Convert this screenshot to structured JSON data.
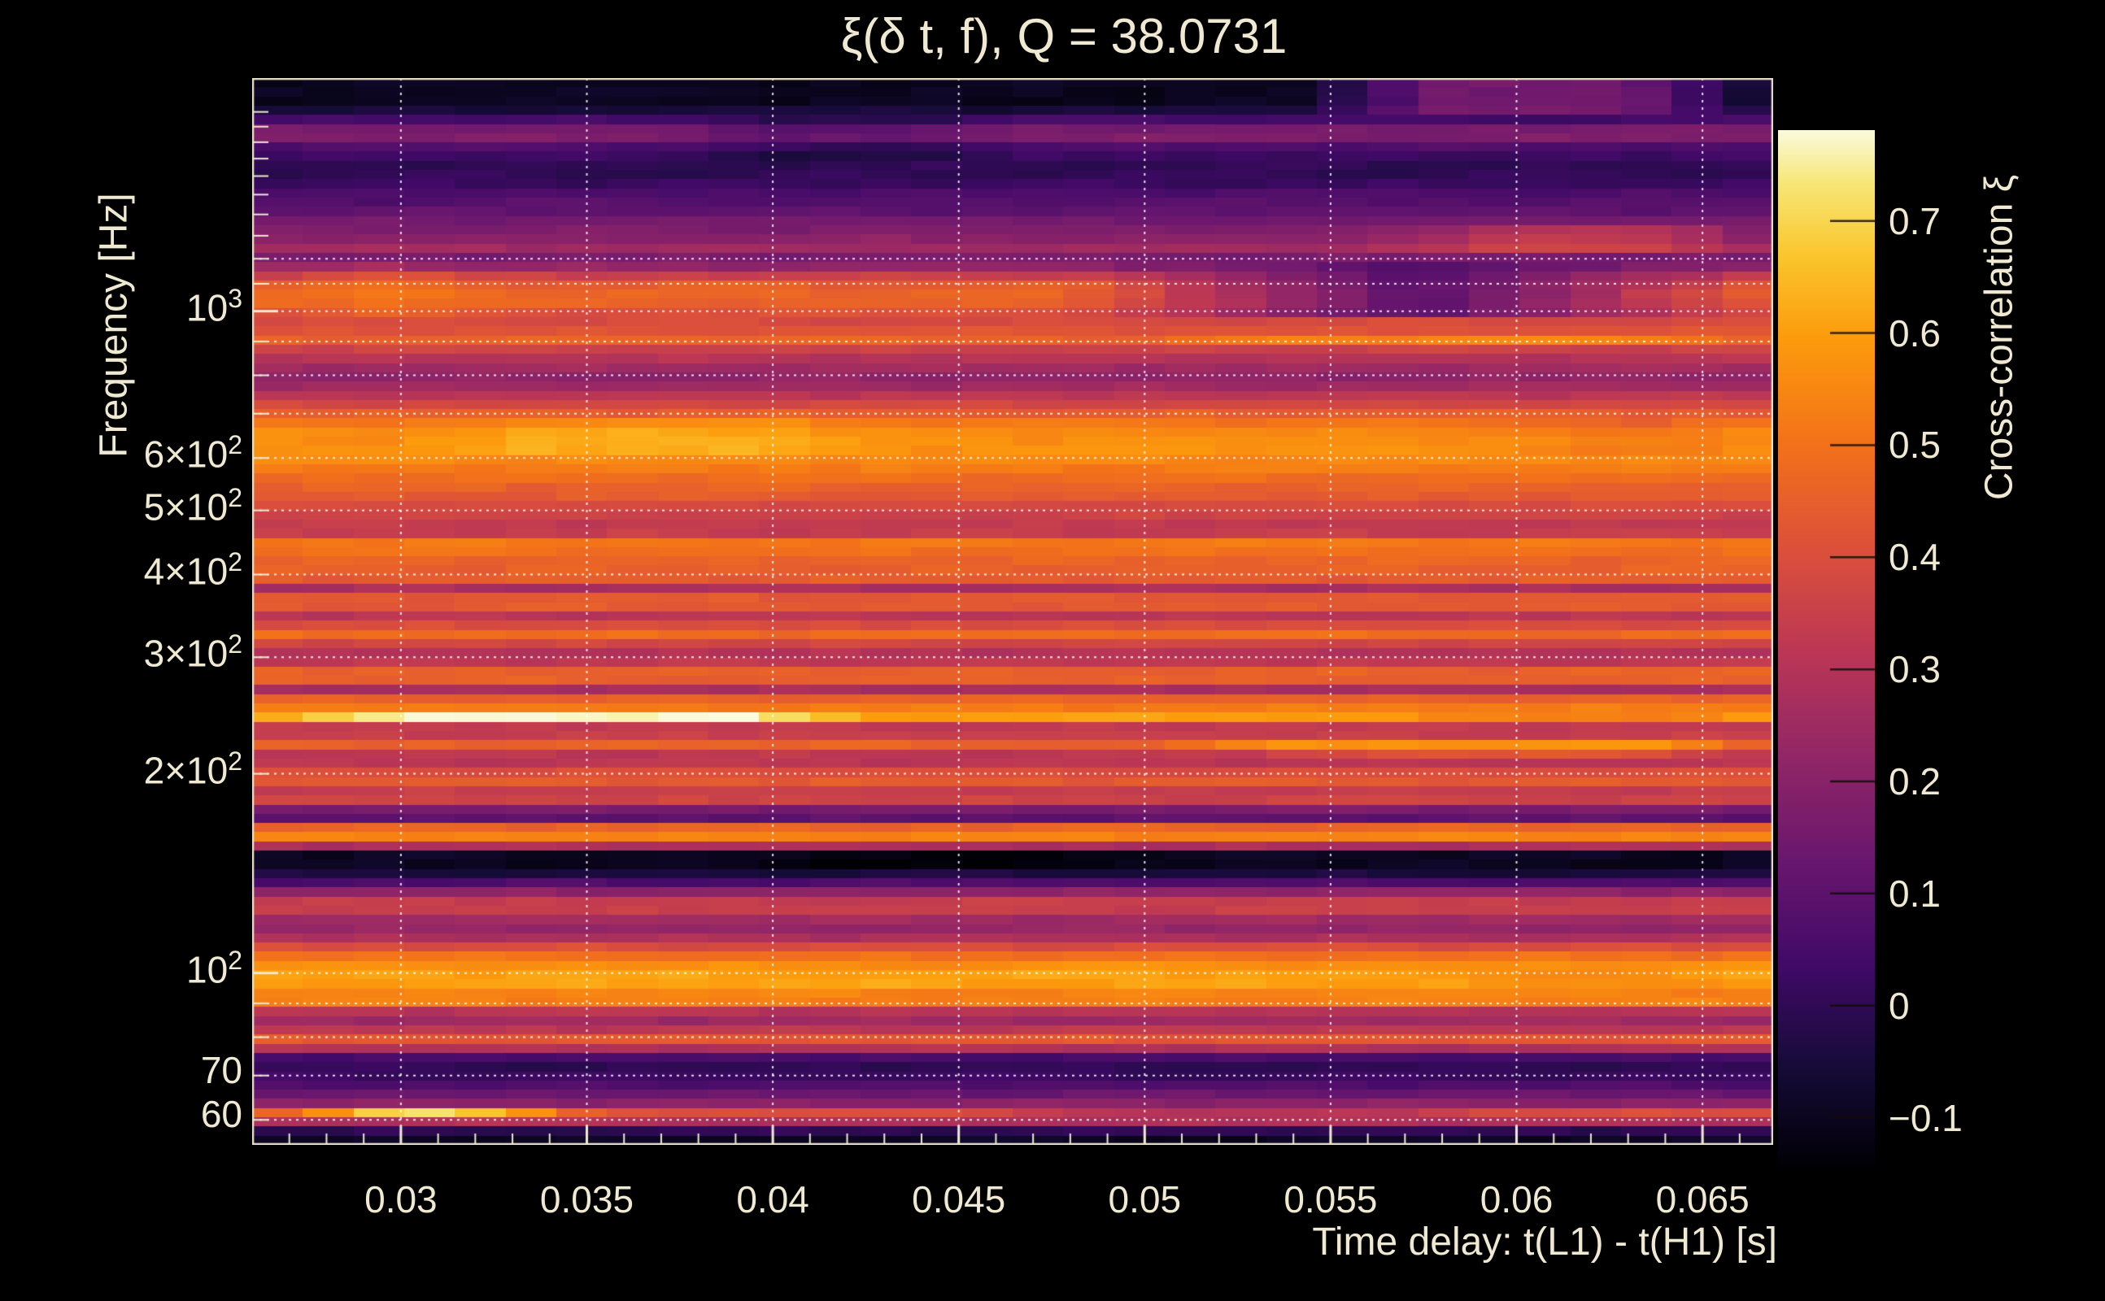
{
  "window": {
    "background": "#000000",
    "text_color": "#f0e9d2"
  },
  "chart_data": {
    "type": "heatmap",
    "title": "ξ(δ t, f), Q = 38.0731",
    "xlabel": "Time delay: t(L1) - t(H1) [s]",
    "ylabel": "Frequency [Hz]",
    "colorbar_label": "Cross-correlation ξ",
    "x_range": [
      0.026,
      0.0669
    ],
    "y_range": [
      55,
      2250
    ],
    "y_scale": "log",
    "x_scale": "linear",
    "color_range": [
      -0.146,
      0.781
    ],
    "grid_on": true,
    "x_ticks": [
      {
        "value": 0.03,
        "label": "0.03"
      },
      {
        "value": 0.035,
        "label": "0.035"
      },
      {
        "value": 0.04,
        "label": "0.04"
      },
      {
        "value": 0.045,
        "label": "0.045"
      },
      {
        "value": 0.05,
        "label": "0.05"
      },
      {
        "value": 0.055,
        "label": "0.055"
      },
      {
        "value": 0.06,
        "label": "0.06"
      },
      {
        "value": 0.065,
        "label": "0.065"
      }
    ],
    "x_minor_step": 0.001,
    "y_ticks": [
      {
        "value": 1000,
        "base": "10",
        "exp": "3"
      },
      {
        "value": 600,
        "base": "6×10",
        "exp": "2"
      },
      {
        "value": 500,
        "base": "5×10",
        "exp": "2"
      },
      {
        "value": 400,
        "base": "4×10",
        "exp": "2"
      },
      {
        "value": 300,
        "base": "3×10",
        "exp": "2"
      },
      {
        "value": 200,
        "base": "2×10",
        "exp": "2"
      },
      {
        "value": 100,
        "base": "10",
        "exp": "2"
      },
      {
        "value": 70,
        "base": "70"
      },
      {
        "value": 60,
        "base": "60"
      }
    ],
    "y_gridlines": [
      60,
      70,
      80,
      90,
      100,
      200,
      300,
      400,
      500,
      600,
      700,
      800,
      900,
      1000,
      1100,
      1200
    ],
    "y_minor_ticks": [
      60,
      70,
      80,
      90,
      100,
      200,
      300,
      400,
      500,
      600,
      700,
      800,
      900,
      1000,
      1100,
      1200,
      1300,
      1400,
      1500,
      1600,
      1700,
      1800,
      1900,
      2000
    ],
    "colorbar_ticks": [
      {
        "value": 0.7,
        "label": "0.7"
      },
      {
        "value": 0.6,
        "label": "0.6"
      },
      {
        "value": 0.5,
        "label": "0.5"
      },
      {
        "value": 0.4,
        "label": "0.4"
      },
      {
        "value": 0.3,
        "label": "0.3"
      },
      {
        "value": 0.2,
        "label": "0.2"
      },
      {
        "value": 0.1,
        "label": "0.1"
      },
      {
        "value": 0,
        "label": "0"
      },
      {
        "value": -0.1,
        "label": "−0.1"
      }
    ],
    "colormap": {
      "name": "inferno-like",
      "stops": [
        [
          0.0,
          [
            0,
            0,
            4
          ]
        ],
        [
          0.1,
          [
            22,
            11,
            57
          ]
        ],
        [
          0.2,
          [
            66,
            10,
            104
          ]
        ],
        [
          0.3,
          [
            106,
            23,
            110
          ]
        ],
        [
          0.4,
          [
            147,
            38,
            103
          ]
        ],
        [
          0.5,
          [
            188,
            55,
            84
          ]
        ],
        [
          0.6,
          [
            221,
            81,
            58
          ]
        ],
        [
          0.7,
          [
            243,
            114,
            25
          ]
        ],
        [
          0.8,
          [
            252,
            155,
            12
          ]
        ],
        [
          0.88,
          [
            250,
            198,
            45
          ]
        ],
        [
          0.95,
          [
            247,
            231,
            120
          ]
        ],
        [
          1.0,
          [
            250,
            250,
            220
          ]
        ]
      ]
    },
    "grid_color": "#ffffff",
    "n_time_columns": 30,
    "n_freq_rows": 116,
    "profile": [
      [
        55,
        -0.12
      ],
      [
        56.3,
        -0.08
      ],
      [
        57.8,
        0.0
      ],
      [
        59.3,
        0.2
      ],
      [
        60.8,
        0.66
      ],
      [
        61.8,
        0.3
      ],
      [
        62.5,
        0.26
      ],
      [
        64,
        0.18
      ],
      [
        66,
        0.12
      ],
      [
        68,
        0.06
      ],
      [
        70,
        0.02
      ],
      [
        72.5,
        0.0
      ],
      [
        74.5,
        0.05
      ],
      [
        76.5,
        0.25
      ],
      [
        79,
        0.45
      ],
      [
        82,
        0.32
      ],
      [
        85,
        0.24
      ],
      [
        88,
        0.32
      ],
      [
        91,
        0.6
      ],
      [
        94,
        0.52
      ],
      [
        97,
        0.63
      ],
      [
        100,
        0.6
      ],
      [
        104,
        0.55
      ],
      [
        108,
        0.45
      ],
      [
        112,
        0.3
      ],
      [
        116,
        0.22
      ],
      [
        120,
        0.25
      ],
      [
        123,
        0.3
      ],
      [
        126,
        0.4
      ],
      [
        129,
        0.33
      ],
      [
        133,
        0.2
      ],
      [
        137,
        0.06
      ],
      [
        141,
        -0.04
      ],
      [
        146,
        -0.1
      ],
      [
        152,
        -0.09
      ],
      [
        156,
        0.32
      ],
      [
        160,
        0.55
      ],
      [
        166,
        0.46
      ],
      [
        170,
        0.1
      ],
      [
        176,
        0.12
      ],
      [
        181,
        0.4
      ],
      [
        186,
        0.28
      ],
      [
        191,
        0.4
      ],
      [
        196,
        0.45
      ],
      [
        203,
        0.38
      ],
      [
        210,
        0.28
      ],
      [
        217,
        0.34
      ],
      [
        222,
        0.48
      ],
      [
        228,
        0.35
      ],
      [
        234,
        0.28
      ],
      [
        241,
        0.48
      ],
      [
        246,
        0.72
      ],
      [
        252,
        0.5
      ],
      [
        261,
        0.45
      ],
      [
        268,
        0.27
      ],
      [
        278,
        0.48
      ],
      [
        288,
        0.45
      ],
      [
        298,
        0.27
      ],
      [
        310,
        0.32
      ],
      [
        322,
        0.46
      ],
      [
        330,
        0.53
      ],
      [
        340,
        0.28
      ],
      [
        350,
        0.33
      ],
      [
        360,
        0.47
      ],
      [
        368,
        0.45
      ],
      [
        380,
        0.26
      ],
      [
        395,
        0.46
      ],
      [
        412,
        0.45
      ],
      [
        425,
        0.47
      ],
      [
        445,
        0.54
      ],
      [
        465,
        0.3
      ],
      [
        485,
        0.35
      ],
      [
        505,
        0.38
      ],
      [
        525,
        0.44
      ],
      [
        545,
        0.46
      ],
      [
        575,
        0.52
      ],
      [
        600,
        0.56
      ],
      [
        625,
        0.58
      ],
      [
        660,
        0.55
      ],
      [
        690,
        0.48
      ],
      [
        715,
        0.4
      ],
      [
        745,
        0.32
      ],
      [
        780,
        0.23
      ],
      [
        800,
        0.21
      ],
      [
        835,
        0.28
      ],
      [
        870,
        0.34
      ],
      [
        905,
        0.47
      ],
      [
        950,
        0.38
      ],
      [
        1000,
        0.41
      ],
      [
        1040,
        0.48
      ],
      [
        1100,
        0.44
      ],
      [
        1150,
        0.3
      ],
      [
        1190,
        0.12
      ],
      [
        1240,
        0.26
      ],
      [
        1300,
        0.19
      ],
      [
        1360,
        0.16
      ],
      [
        1420,
        0.1
      ],
      [
        1500,
        0.07
      ],
      [
        1560,
        0.02
      ],
      [
        1640,
        -0.01
      ],
      [
        1700,
        0.02
      ],
      [
        1760,
        0.05
      ],
      [
        1830,
        0.18
      ],
      [
        1900,
        0.16
      ],
      [
        1960,
        0.02
      ],
      [
        2050,
        -0.1
      ],
      [
        2250,
        -0.1
      ]
    ],
    "features": [
      {
        "f": [
          1950,
          2260
        ],
        "t": [
          0.054,
          0.067
        ],
        "mode": "set",
        "v": 0.15,
        "ramp": 0.004
      },
      {
        "f": [
          990,
          1170
        ],
        "t": [
          0.048,
          0.067
        ],
        "mode": "set",
        "v": 0.07,
        "ramp": 0.01
      },
      {
        "f": [
          990,
          1170
        ],
        "t": [
          0.026,
          0.033
        ],
        "mode": "add",
        "v": 0.05,
        "ramp": 0.003
      },
      {
        "f": [
          243,
          249
        ],
        "t": [
          0.026,
          0.043
        ],
        "mode": "set",
        "v": 0.78,
        "ramp": 0.004
      },
      {
        "f": [
          243,
          249
        ],
        "t": [
          0.056,
          0.067
        ],
        "mode": "set",
        "v": 0.52,
        "ramp": 0.004
      },
      {
        "f": [
          219,
          226
        ],
        "t": [
          0.05,
          0.067
        ],
        "mode": "set",
        "v": 0.58,
        "ramp": 0.004
      },
      {
        "f": [
          212,
          218
        ],
        "t": [
          0.052,
          0.067
        ],
        "mode": "add",
        "v": 0.1,
        "ramp": 0.004
      },
      {
        "f": [
          893,
          918
        ],
        "t": [
          0.05,
          0.067
        ],
        "mode": "add",
        "v": 0.08,
        "ramp": 0.004
      },
      {
        "f": [
          600,
          685
        ],
        "t": [
          0.03,
          0.0435
        ],
        "mode": "add",
        "v": 0.06,
        "ramp": 0.004
      },
      {
        "f": [
          600,
          685
        ],
        "t": [
          0.059,
          0.067
        ],
        "mode": "add",
        "v": -0.05,
        "ramp": 0.004
      },
      {
        "f": [
          59.8,
          61.8
        ],
        "t": [
          0.026,
          0.0355
        ],
        "mode": "set",
        "v": 0.73,
        "ramp": 0.004
      },
      {
        "f": [
          59.8,
          61.8
        ],
        "t": [
          0.045,
          0.06
        ],
        "mode": "add",
        "v": -0.1,
        "ramp": 0.004
      },
      {
        "f": [
          143,
          154
        ],
        "t": [
          0.038,
          0.052
        ],
        "mode": "add",
        "v": -0.04,
        "ramp": 0.004
      },
      {
        "f": [
          1700,
          1990
        ],
        "t": [
          0.036,
          0.0475
        ],
        "mode": "add",
        "v": -0.06,
        "ramp": 0.004
      },
      {
        "f": [
          1235,
          1335
        ],
        "t": [
          0.056,
          0.067
        ],
        "mode": "add",
        "v": 0.12,
        "ramp": 0.004
      },
      {
        "f": [
          96,
          101
        ],
        "t": [
          0.058,
          0.067
        ],
        "mode": "add",
        "v": -0.05,
        "ramp": 0.004
      }
    ]
  }
}
